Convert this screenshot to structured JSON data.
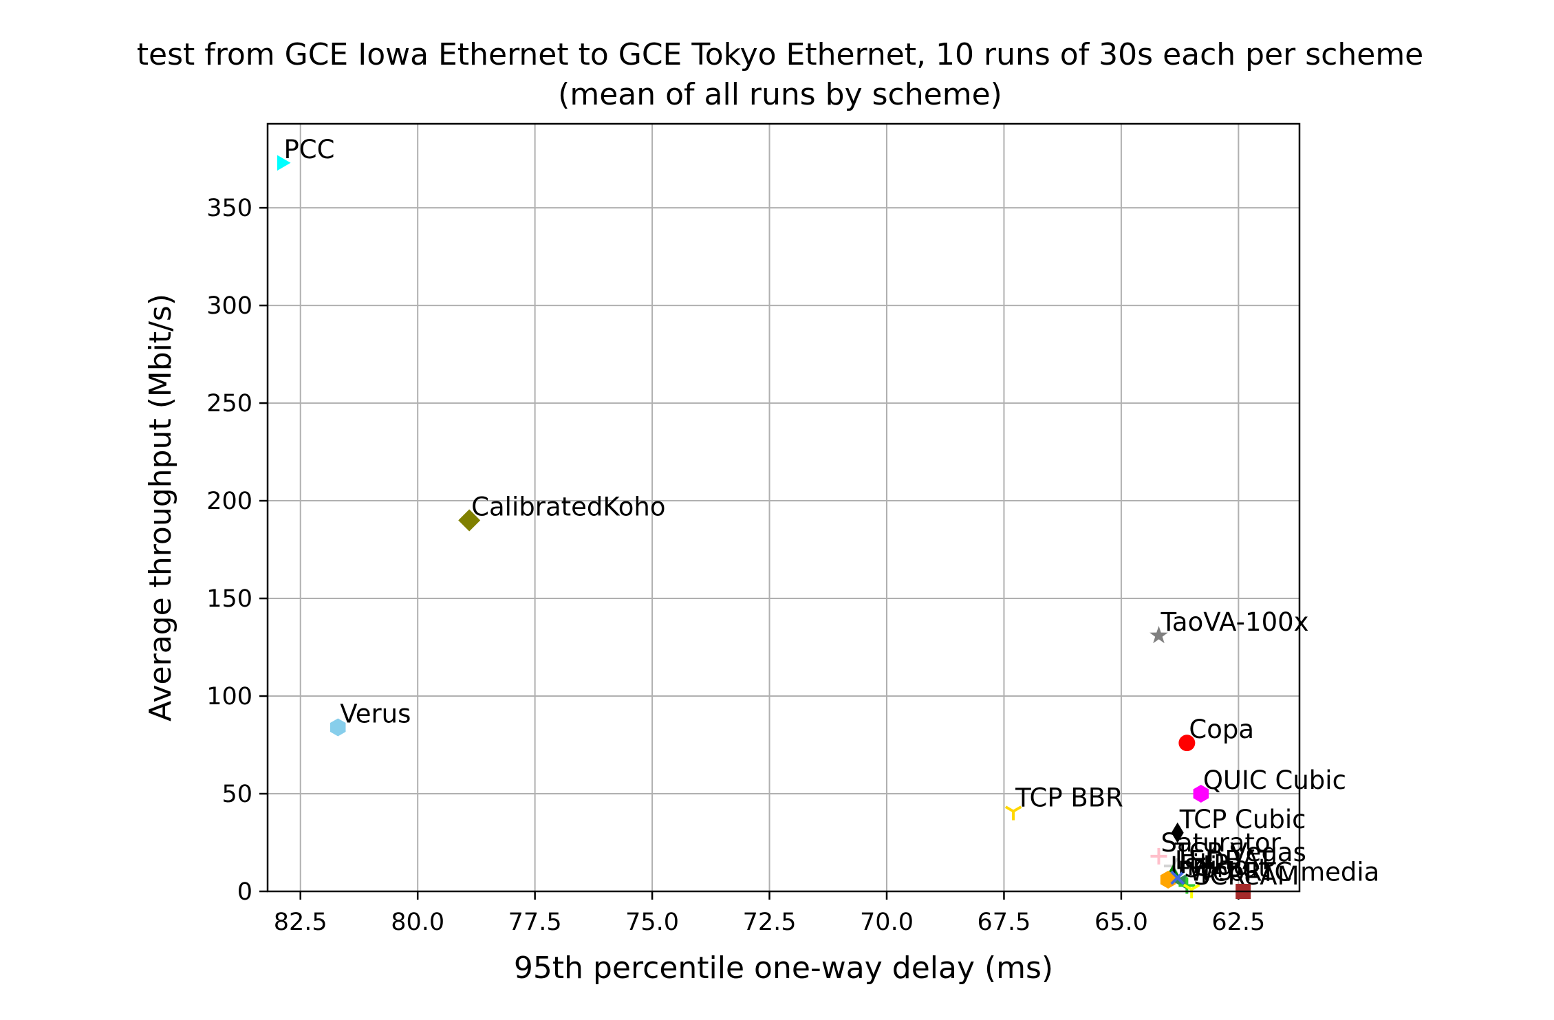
{
  "chart_data": {
    "type": "scatter",
    "title": "test from GCE Iowa Ethernet to GCE Tokyo Ethernet, 10 runs of 30s each per scheme",
    "subtitle": "(mean of all runs by scheme)",
    "xlabel": "95th percentile one-way delay (ms)",
    "ylabel": "Average throughput (Mbit/s)",
    "xlim": [
      83.2,
      61.2
    ],
    "ylim": [
      0,
      393
    ],
    "x_inverted": true,
    "grid": true,
    "x_ticks": [
      82.5,
      80.0,
      77.5,
      75.0,
      72.5,
      70.0,
      67.5,
      65.0,
      62.5
    ],
    "x_tick_labels": [
      "82.5",
      "80.0",
      "77.5",
      "75.0",
      "72.5",
      "70.0",
      "67.5",
      "65.0",
      "62.5"
    ],
    "y_ticks": [
      0,
      50,
      100,
      150,
      200,
      250,
      300,
      350
    ],
    "y_tick_labels": [
      "0",
      "50",
      "100",
      "150",
      "200",
      "250",
      "300",
      "350"
    ],
    "points": [
      {
        "name": "PCC",
        "x": 82.9,
        "y": 373,
        "color": "#00ffff",
        "marker": "triangle-right"
      },
      {
        "name": "CalibratedKoho",
        "x": 78.9,
        "y": 190,
        "color": "#808000",
        "marker": "diamond"
      },
      {
        "name": "TaoVA-100x",
        "x": 64.2,
        "y": 131,
        "color": "#808080",
        "marker": "star"
      },
      {
        "name": "Verus",
        "x": 81.7,
        "y": 84,
        "color": "#87ceeb",
        "marker": "hexagon"
      },
      {
        "name": "Copa",
        "x": 63.6,
        "y": 76,
        "color": "#ff0000",
        "marker": "circle"
      },
      {
        "name": "QUIC Cubic",
        "x": 63.3,
        "y": 50,
        "color": "#ff00ff",
        "marker": "hexagon"
      },
      {
        "name": "TCP BBR",
        "x": 67.3,
        "y": 41,
        "color": "#ffd700",
        "marker": "tri-down"
      },
      {
        "name": "TCP Cubic",
        "x": 63.8,
        "y": 30,
        "color": "#000000",
        "marker": "diamond-thin"
      },
      {
        "name": "Saturator",
        "x": 64.2,
        "y": 18,
        "color": "#ffc0cb",
        "marker": "plus"
      },
      {
        "name": "TCP Vegas",
        "x": 63.9,
        "y": 13,
        "color": "#d3d3d3",
        "marker": "tri-left"
      },
      {
        "name": "LEDBAT",
        "x": 63.9,
        "y": 9,
        "color": "#008000",
        "marker": "triangle-up"
      },
      {
        "name": "Indigo",
        "x": 64.0,
        "y": 6,
        "color": "#ffa500",
        "marker": "hexagon"
      },
      {
        "name": "Sprout",
        "x": 63.7,
        "y": 5,
        "color": "#2e8b57",
        "marker": "triangle-left"
      },
      {
        "name": "WebRTC media",
        "x": 63.6,
        "y": 3,
        "color": "#32cd32",
        "marker": "plus"
      },
      {
        "name": "FillP",
        "x": 63.8,
        "y": 7,
        "color": "#4169e1",
        "marker": "x"
      },
      {
        "name": "SCReAM",
        "x": 63.5,
        "y": 1,
        "color": "#ffff00",
        "marker": "tri-down"
      },
      {
        "name": "",
        "x": 62.4,
        "y": 0,
        "color": "#a52a2a",
        "marker": "square"
      }
    ]
  }
}
